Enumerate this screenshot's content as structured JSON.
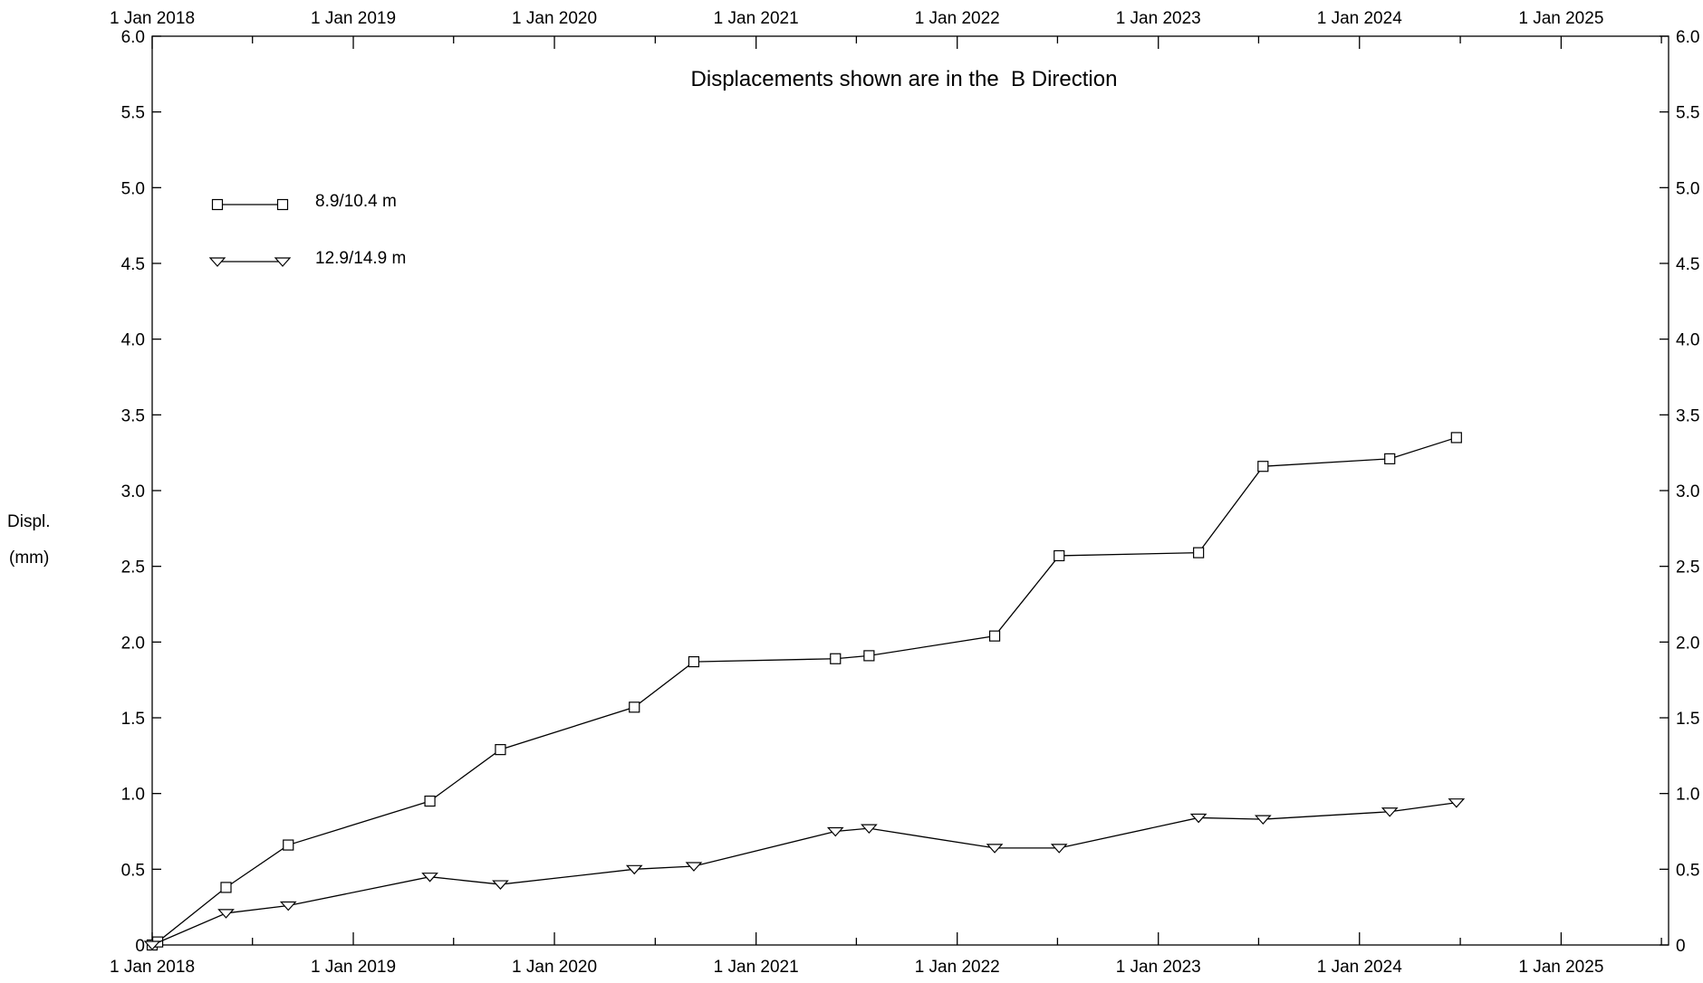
{
  "chart_data": {
    "type": "line",
    "title": "Displacements shown are in the  B Direction",
    "ylabel_lines": [
      "Displ.",
      "(mm)"
    ],
    "xlim": [
      "2018-01-01",
      "2025-07-15"
    ],
    "ylim": [
      0,
      6.0
    ],
    "y_ticks": [
      0,
      0.5,
      1.0,
      1.5,
      2.0,
      2.5,
      3.0,
      3.5,
      4.0,
      4.5,
      5.0,
      5.5,
      6.0
    ],
    "y_tick_labels": [
      "0",
      "0.5",
      "1.0",
      "1.5",
      "2.0",
      "2.5",
      "3.0",
      "3.5",
      "4.0",
      "4.5",
      "5.0",
      "5.5",
      "6.0"
    ],
    "x_ticks": [
      "2018-01-01",
      "2019-01-01",
      "2020-01-01",
      "2021-01-01",
      "2022-01-01",
      "2023-01-01",
      "2024-01-01",
      "2025-01-01"
    ],
    "x_tick_labels": [
      "1 Jan 2018",
      "1 Jan 2019",
      "1 Jan 2020",
      "1 Jan 2021",
      "1 Jan 2022",
      "1 Jan 2023",
      "1 Jan 2024",
      "1 Jan 2025"
    ],
    "grid": false,
    "legend_position": "top-left",
    "series": [
      {
        "name": "8.9/10.4 m",
        "marker": "square",
        "points": [
          {
            "x": "2018-01-01",
            "y": 0.0
          },
          {
            "x": "2018-01-11",
            "y": 0.02
          },
          {
            "x": "2018-05-15",
            "y": 0.38
          },
          {
            "x": "2018-09-05",
            "y": 0.66
          },
          {
            "x": "2019-05-20",
            "y": 0.95
          },
          {
            "x": "2019-09-25",
            "y": 1.29
          },
          {
            "x": "2020-05-25",
            "y": 1.57
          },
          {
            "x": "2020-09-10",
            "y": 1.87
          },
          {
            "x": "2021-05-25",
            "y": 1.89
          },
          {
            "x": "2021-07-25",
            "y": 1.91
          },
          {
            "x": "2022-03-10",
            "y": 2.04
          },
          {
            "x": "2022-07-05",
            "y": 2.57
          },
          {
            "x": "2023-03-15",
            "y": 2.59
          },
          {
            "x": "2023-07-10",
            "y": 3.16
          },
          {
            "x": "2024-02-25",
            "y": 3.21
          },
          {
            "x": "2024-06-25",
            "y": 3.35
          }
        ]
      },
      {
        "name": "12.9/14.9 m",
        "marker": "triangle-down",
        "points": [
          {
            "x": "2018-01-01",
            "y": 0.0
          },
          {
            "x": "2018-05-15",
            "y": 0.21
          },
          {
            "x": "2018-09-05",
            "y": 0.26
          },
          {
            "x": "2019-05-20",
            "y": 0.45
          },
          {
            "x": "2019-09-25",
            "y": 0.4
          },
          {
            "x": "2020-05-25",
            "y": 0.5
          },
          {
            "x": "2020-09-10",
            "y": 0.52
          },
          {
            "x": "2021-05-25",
            "y": 0.75
          },
          {
            "x": "2021-07-25",
            "y": 0.77
          },
          {
            "x": "2022-03-10",
            "y": 0.64
          },
          {
            "x": "2022-07-05",
            "y": 0.64
          },
          {
            "x": "2023-03-15",
            "y": 0.84
          },
          {
            "x": "2023-07-10",
            "y": 0.83
          },
          {
            "x": "2024-02-25",
            "y": 0.88
          },
          {
            "x": "2024-06-25",
            "y": 0.94
          }
        ]
      }
    ]
  }
}
